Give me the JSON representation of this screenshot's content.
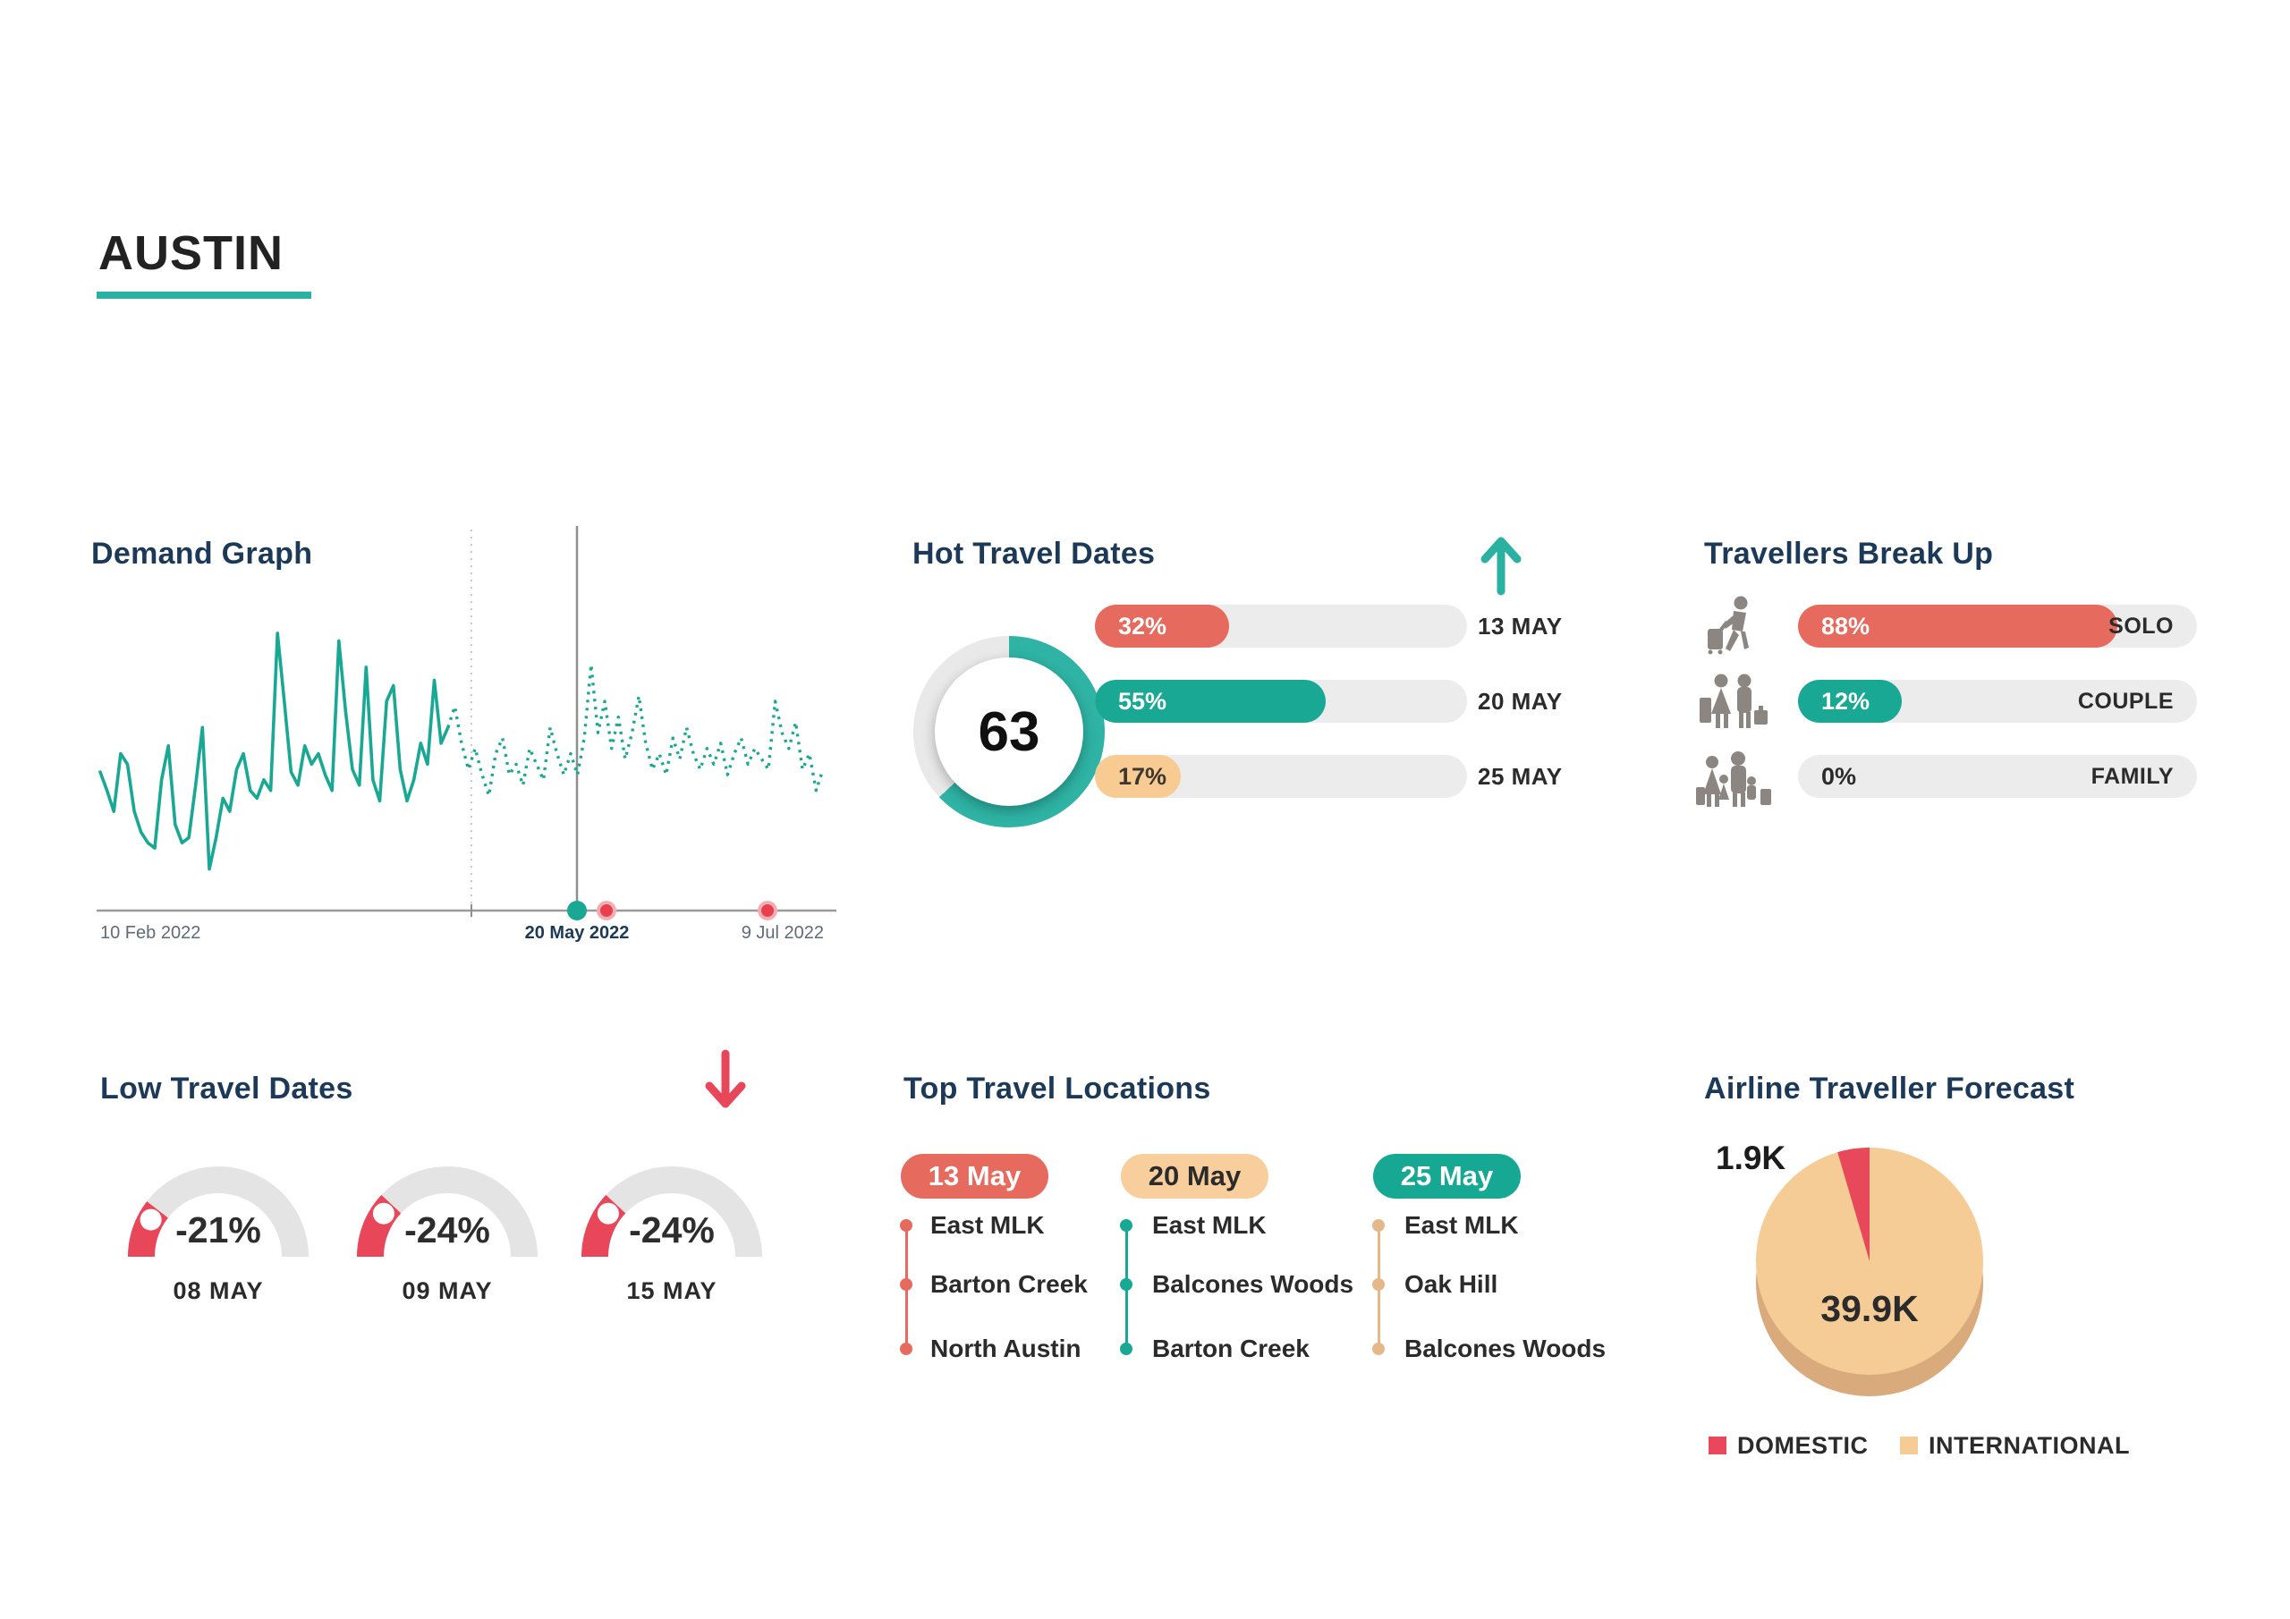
{
  "page": {
    "title": "AUSTIN",
    "accent_teal": "#2bb1a2",
    "accent_red": "#e8495a",
    "title_navy": "#1c3a57"
  },
  "chart_data": [
    {
      "type": "line",
      "title": "Demand Graph",
      "x_tick_labels": [
        "10 Feb 2022",
        "20 May 2022",
        "9 Jul 2022"
      ],
      "x_range": [
        "10 Feb 2022",
        "9 Jul 2022"
      ],
      "ylim": [
        0,
        100
      ],
      "grid": false,
      "line_color": "#19a893",
      "solid_until_index": 51,
      "values": [
        45,
        38,
        30,
        52,
        48,
        30,
        22,
        18,
        16,
        42,
        55,
        25,
        18,
        20,
        40,
        62,
        8,
        20,
        35,
        30,
        46,
        52,
        38,
        35,
        42,
        38,
        98,
        72,
        45,
        40,
        55,
        48,
        52,
        44,
        38,
        95,
        68,
        46,
        40,
        85,
        42,
        34,
        72,
        78,
        46,
        34,
        42,
        56,
        48,
        80,
        56,
        62,
        70,
        56,
        46,
        54,
        44,
        36,
        52,
        58,
        44,
        48,
        40,
        54,
        48,
        42,
        62,
        52,
        44,
        52,
        44,
        58,
        86,
        60,
        72,
        54,
        66,
        50,
        60,
        74,
        56,
        46,
        52,
        44,
        58,
        50,
        62,
        52,
        46,
        54,
        48,
        56,
        44,
        52,
        58,
        48,
        54,
        50,
        46,
        72,
        60,
        54,
        64,
        46,
        52,
        38,
        46
      ],
      "markers": [
        {
          "label": "20 May 2022",
          "color": "#19a893"
        },
        {
          "label": "",
          "color": "#e8404e"
        },
        {
          "label": "9 Jul 2022",
          "color": "#e8404e"
        }
      ]
    },
    {
      "type": "donut+bars",
      "title": "Hot Travel Dates",
      "trend_icon": "arrow-up-icon",
      "donut_value": 63,
      "donut_color": "#2eb3a4",
      "bars": [
        {
          "value": 32,
          "label": "32%",
          "fill_pct": 36,
          "color": "#e76a5e",
          "label_color": "#ffffff",
          "date": "13 MAY"
        },
        {
          "value": 55,
          "label": "55%",
          "fill_pct": 62,
          "color": "#19a893",
          "label_color": "#ffffff",
          "date": "20 MAY"
        },
        {
          "value": 17,
          "label": "17%",
          "fill_pct": 21,
          "color": "#f8cb93",
          "label_color": "#3d372e",
          "date": "25 MAY"
        }
      ]
    },
    {
      "type": "bars",
      "title": "Travellers Break Up",
      "rows": [
        {
          "icon": "solo-traveller-icon",
          "value": 88,
          "label": "88%",
          "fill_pct": 80,
          "color": "#e76a5e",
          "label_color": "#ffffff",
          "category": "SOLO"
        },
        {
          "icon": "couple-travellers-icon",
          "value": 12,
          "label": "12%",
          "fill_pct": 26,
          "color": "#19a893",
          "label_color": "#ffffff",
          "category": "COUPLE"
        },
        {
          "icon": "family-travellers-icon",
          "value": 0,
          "label": "0%",
          "fill_pct": 0,
          "color": null,
          "label_color": "#2b2b2b",
          "category": "FAMILY"
        }
      ]
    },
    {
      "type": "gauge",
      "title": "Low Travel Dates",
      "trend_icon": "arrow-down-icon",
      "gauge_color": "#e8475a",
      "gauges": [
        {
          "value": -21,
          "label": "-21%",
          "date": "08 MAY"
        },
        {
          "value": -24,
          "label": "-24%",
          "date": "09 MAY"
        },
        {
          "value": -24,
          "label": "-24%",
          "date": "15 MAY"
        }
      ]
    },
    {
      "type": "table",
      "title": "Top Travel Locations",
      "columns": [
        {
          "header": "13 May",
          "header_bg": "#e76a5e",
          "header_text_color": "#ffffff",
          "accent_color": "#e76a5e",
          "locations": [
            "East MLK",
            "Barton Creek",
            "North Austin"
          ]
        },
        {
          "header": "20 May",
          "header_bg": "#f7ce9c",
          "header_text_color": "#2b2b2b",
          "accent_color": "#19a893",
          "locations": [
            "East MLK",
            "Balcones Woods",
            "Barton Creek"
          ]
        },
        {
          "header": "25 May",
          "header_bg": "#16a893",
          "header_text_color": "#ffffff",
          "accent_color": "#e5b88a",
          "locations": [
            "East MLK",
            "Oak Hill",
            "Balcones Woods"
          ]
        }
      ]
    },
    {
      "type": "pie",
      "title": "Airline Traveller Forecast",
      "rim_color": "#d9aa7b",
      "slices": [
        {
          "label": "DOMESTIC",
          "value": 1900,
          "display": "1.9K",
          "color": "#e8495a"
        },
        {
          "label": "INTERNATIONAL",
          "value": 39900,
          "display": "39.9K",
          "color": "#f5cb96"
        }
      ]
    }
  ]
}
